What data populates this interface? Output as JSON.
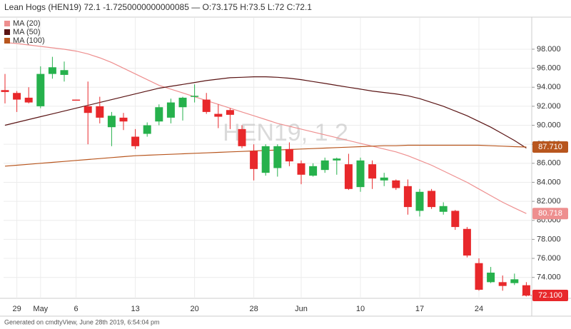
{
  "chart_data": {
    "type": "candlestick",
    "title": "Lean Hogs (HEN19) 72.1 -1.7250000000000085 — O:73.175 H:73.5 L:72 C:72.1",
    "watermark": "HEN19, 1 2",
    "footer": "Generated on cmdtyView, June 28th 2019, 6:54:04 pm",
    "categories": [
      null,
      "29",
      null,
      "May",
      null,
      null,
      "6",
      null,
      null,
      null,
      null,
      "13",
      null,
      null,
      null,
      null,
      "20",
      null,
      null,
      null,
      null,
      "28",
      null,
      null,
      null,
      "Jun",
      null,
      null,
      null,
      null,
      "10",
      null,
      null,
      null,
      null,
      "17",
      null,
      null,
      null,
      null,
      "24",
      null,
      null,
      null,
      null
    ],
    "ylim": [
      71.8,
      101.3
    ],
    "yticks": [
      {
        "value": 74,
        "label": "74.000"
      },
      {
        "value": 76,
        "label": "76.000"
      },
      {
        "value": 78,
        "label": "78.000"
      },
      {
        "value": 80,
        "label": "80.000"
      },
      {
        "value": 82,
        "label": "82.000"
      },
      {
        "value": 84,
        "label": "84.000"
      },
      {
        "value": 86,
        "label": "86.000"
      },
      {
        "value": 88,
        "label": "88.000"
      },
      {
        "value": 90,
        "label": "90.000"
      },
      {
        "value": 92,
        "label": "92.000"
      },
      {
        "value": 94,
        "label": "94.000"
      },
      {
        "value": 96,
        "label": "96.000"
      },
      {
        "value": 98,
        "label": "98.000"
      }
    ],
    "grid": true,
    "series": [
      {
        "name": "Lean Hogs",
        "type": "candlestick",
        "up_color": "#26b14c",
        "down_color": "#e8282b",
        "last_label": "72.100",
        "open": [
          93.7,
          93.4,
          92.9,
          92.0,
          95.4,
          95.3,
          92.7,
          92.0,
          92.0,
          89.8,
          90.8,
          88.8,
          89.1,
          90.4,
          90.8,
          91.9,
          93.0,
          92.7,
          91.2,
          91.6,
          89.6,
          87.3,
          85.0,
          85.5,
          87.5,
          86.0,
          84.7,
          85.3,
          86.3,
          85.9,
          83.5,
          85.9,
          84.2,
          84.2,
          83.6,
          81.0,
          83.1,
          80.9,
          81.0,
          79.1,
          75.5,
          73.5,
          73.5,
          73.4,
          73.175
        ],
        "high": [
          95.4,
          93.6,
          94.0,
          96.2,
          97.2,
          96.7,
          92.7,
          94.6,
          93.0,
          91.4,
          91.3,
          89.6,
          90.3,
          92.2,
          92.8,
          93.0,
          94.3,
          93.4,
          92.2,
          91.8,
          90.0,
          88.0,
          88.0,
          88.0,
          88.2,
          86.3,
          86.0,
          86.6,
          86.6,
          87.0,
          86.6,
          86.3,
          85.0,
          84.3,
          84.3,
          83.3,
          83.3,
          81.9,
          81.1,
          79.3,
          76.0,
          75.1,
          74.2,
          74.4,
          73.5
        ],
        "low": [
          92.3,
          91.4,
          92.3,
          91.8,
          94.9,
          94.6,
          92.6,
          88.0,
          90.2,
          87.8,
          89.5,
          87.5,
          88.8,
          90.0,
          90.2,
          90.5,
          92.4,
          91.2,
          89.7,
          89.6,
          87.6,
          84.2,
          84.7,
          84.6,
          85.7,
          83.8,
          84.6,
          85.0,
          84.8,
          83.2,
          83.0,
          83.3,
          83.6,
          83.2,
          80.6,
          80.4,
          81.2,
          80.6,
          79.0,
          76.1,
          72.6,
          73.4,
          72.6,
          73.2,
          72
        ],
        "close": [
          93.5,
          92.7,
          92.4,
          95.4,
          96.1,
          95.8,
          92.6,
          91.3,
          90.8,
          91.0,
          90.4,
          87.8,
          90.0,
          91.9,
          92.4,
          92.9,
          93.1,
          91.4,
          90.9,
          91.1,
          87.8,
          85.4,
          87.8,
          87.8,
          86.2,
          84.8,
          85.7,
          86.3,
          86.5,
          83.3,
          86.3,
          84.4,
          84.5,
          83.4,
          81.4,
          83.0,
          81.4,
          81.5,
          79.3,
          76.3,
          72.7,
          74.5,
          73.1,
          73.8,
          72.1
        ]
      },
      {
        "name": "MA (20)",
        "type": "line",
        "color": "#ee8f8f",
        "last_label": "80.718",
        "values": [
          98.7,
          98.6,
          98.45,
          98.3,
          98.15,
          98.0,
          97.8,
          97.5,
          97.1,
          96.6,
          96.0,
          95.4,
          94.8,
          94.2,
          93.8,
          93.4,
          93.0,
          92.6,
          92.2,
          91.8,
          91.4,
          91.0,
          90.6,
          90.2,
          89.9,
          89.6,
          89.3,
          89.0,
          88.7,
          88.4,
          88.1,
          87.8,
          87.5,
          87.2,
          86.8,
          86.3,
          85.8,
          85.2,
          84.6,
          84.0,
          83.3,
          82.6,
          81.9,
          81.3,
          80.718
        ]
      },
      {
        "name": "MA (50)",
        "type": "line",
        "color": "#5a1414",
        "values": [
          90.0,
          90.3,
          90.6,
          90.9,
          91.2,
          91.5,
          91.8,
          92.1,
          92.4,
          92.7,
          93.0,
          93.3,
          93.6,
          93.9,
          94.1,
          94.3,
          94.5,
          94.7,
          94.85,
          95.0,
          95.05,
          95.1,
          95.1,
          95.05,
          94.95,
          94.8,
          94.6,
          94.4,
          94.2,
          94.0,
          93.8,
          93.6,
          93.45,
          93.3,
          93.1,
          92.8,
          92.4,
          92.0,
          91.5,
          91.0,
          90.4,
          89.8,
          89.1,
          88.4,
          87.6
        ]
      },
      {
        "name": "MA (100)",
        "type": "line",
        "color": "#b8561e",
        "last_label": "87.710",
        "values": [
          85.7,
          85.8,
          85.9,
          86.0,
          86.1,
          86.2,
          86.3,
          86.4,
          86.5,
          86.6,
          86.7,
          86.8,
          86.85,
          86.9,
          86.95,
          87.0,
          87.05,
          87.1,
          87.15,
          87.2,
          87.25,
          87.3,
          87.35,
          87.4,
          87.45,
          87.5,
          87.55,
          87.6,
          87.65,
          87.7,
          87.75,
          87.8,
          87.85,
          87.85,
          87.9,
          87.9,
          87.9,
          87.9,
          87.9,
          87.9,
          87.9,
          87.85,
          87.8,
          87.75,
          87.71
        ]
      }
    ]
  }
}
